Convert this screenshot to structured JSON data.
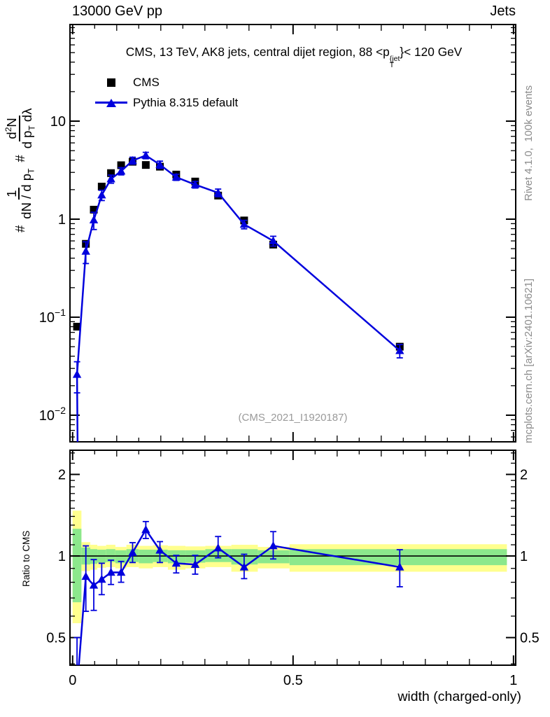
{
  "header": {
    "left": "13000 GeV pp",
    "right": "Jets"
  },
  "watermark": "(CMS_2021_I1920187)",
  "side_notes": {
    "top_right": "Rivet 4.1.0,  100k events",
    "bottom_right": "mcplots.cern.ch [arXiv:2401.10621]"
  },
  "chart_data": {
    "type": "line",
    "title_parts": {
      "prefix": "CMS, 13 TeV, AK8 jets, central dijet region, 88 <p",
      "sup": "{jet",
      "sub": "T",
      "suffix": "}< 120 GeV"
    },
    "xlabel": "width (charged-only)",
    "ratio_label": "Ratio to CMS",
    "ylabel_parts": {
      "h1": "#",
      "f1_num": "1",
      "f1_den": "dN / d p",
      "f1_den_sub": "T",
      "h2": "#",
      "f2_num_a": "d",
      "f2_num_sup": "2",
      "f2_num_b": "N",
      "f2_den_a": "d p",
      "f2_den_sub": "T",
      "f2_den_b": " dλ"
    },
    "legend": [
      {
        "label": "CMS",
        "marker": "square"
      },
      {
        "label": "Pythia 8.315 default",
        "marker": "triangle-line"
      }
    ],
    "legend_position": "top-left",
    "grid": false,
    "xlim": [
      -0.006,
      1.005
    ],
    "ylim_main": [
      0.00535,
      96.8
    ],
    "ylim_ratio": [
      0.3955,
      2.456
    ],
    "xticks": [
      {
        "value": 0,
        "label": "0"
      },
      {
        "value": 0.5,
        "label": "0.5"
      },
      {
        "value": 1,
        "label": "1"
      }
    ],
    "yticks_main": [
      {
        "value": 10,
        "base": "10",
        "exp": ""
      },
      {
        "value": 1,
        "base": "1",
        "exp": ""
      },
      {
        "value": 0.1,
        "base": "10",
        "exp": "−1"
      },
      {
        "value": 0.01,
        "base": "10",
        "exp": "−2"
      }
    ],
    "yticks_ratio": [
      {
        "value": 2,
        "label": "2"
      },
      {
        "value": 1,
        "label": "1"
      },
      {
        "value": 0.5,
        "label": "0.5"
      }
    ],
    "x": [
      0.01,
      0.03,
      0.048,
      0.066,
      0.087,
      0.11,
      0.136,
      0.166,
      0.198,
      0.235,
      0.278,
      0.33,
      0.389,
      0.455,
      0.742
    ],
    "series": [
      {
        "name": "CMS",
        "marker": "square",
        "color": "#000000",
        "values": [
          0.08,
          0.56,
          1.25,
          2.15,
          2.95,
          3.55,
          3.85,
          3.57,
          3.43,
          2.85,
          2.42,
          1.74,
          0.97,
          0.55,
          0.05
        ]
      },
      {
        "name": "Pythia 8.315 default",
        "marker": "triangle",
        "color": "#0000dd",
        "values": [
          0.026,
          0.47,
          0.98,
          1.76,
          2.57,
          3.09,
          3.96,
          4.47,
          3.6,
          2.68,
          2.25,
          1.86,
          0.885,
          0.6,
          0.0455
        ],
        "yerr_frac": [
          0.35,
          0.25,
          0.2,
          0.12,
          0.095,
          0.085,
          0.082,
          0.075,
          0.085,
          0.072,
          0.077,
          0.09,
          0.1,
          0.115,
          0.155
        ]
      }
    ],
    "ratio": {
      "values": [
        0.325,
        0.84,
        0.78,
        0.82,
        0.87,
        0.87,
        1.03,
        1.25,
        1.05,
        0.94,
        0.93,
        1.07,
        0.91,
        1.09,
        0.91
      ],
      "err_lo": [
        0.2,
        0.625,
        0.63,
        0.72,
        0.785,
        0.8,
        0.946,
        1.16,
        0.946,
        0.866,
        0.857,
        0.985,
        0.825,
        0.975,
        0.77
      ],
      "err_hi": [
        0.5,
        1.09,
        0.97,
        0.94,
        0.965,
        0.955,
        1.12,
        1.34,
        1.13,
        1.005,
        1.005,
        1.18,
        1.015,
        1.23,
        1.055
      ]
    },
    "bands": [
      [
        0.0,
        0.02,
        0.565,
        1.47,
        0.675,
        1.26
      ],
      [
        0.02,
        0.04,
        0.88,
        1.125,
        0.93,
        1.075
      ],
      [
        0.04,
        0.056,
        0.89,
        1.1,
        0.935,
        1.06
      ],
      [
        0.056,
        0.076,
        0.905,
        1.09,
        0.945,
        1.055
      ],
      [
        0.076,
        0.097,
        0.91,
        1.1,
        0.95,
        1.06
      ],
      [
        0.097,
        0.122,
        0.9,
        1.08,
        0.94,
        1.05
      ],
      [
        0.122,
        0.15,
        0.91,
        1.1,
        0.95,
        1.06
      ],
      [
        0.15,
        0.182,
        0.9,
        1.09,
        0.94,
        1.055
      ],
      [
        0.182,
        0.216,
        0.91,
        1.095,
        0.95,
        1.055
      ],
      [
        0.216,
        0.256,
        0.89,
        1.09,
        0.94,
        1.05
      ],
      [
        0.256,
        0.301,
        0.9,
        1.085,
        0.945,
        1.05
      ],
      [
        0.301,
        0.36,
        0.91,
        1.09,
        0.95,
        1.06
      ],
      [
        0.36,
        0.42,
        0.875,
        1.1,
        0.93,
        1.06
      ],
      [
        0.42,
        0.492,
        0.9,
        1.08,
        0.94,
        1.05
      ],
      [
        0.492,
        0.985,
        0.875,
        1.105,
        0.925,
        1.06
      ]
    ],
    "colors": {
      "mc": "#0000dd",
      "data": "#000000",
      "band_outer": "#ffff8e",
      "band_inner": "#8ce88c",
      "baseline": "#000000"
    }
  }
}
